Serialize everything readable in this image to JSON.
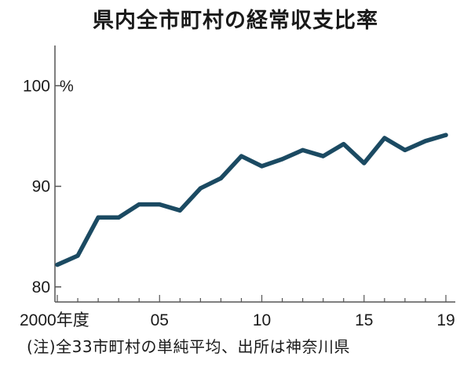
{
  "title": "県内全市町村の経常収支比率",
  "note": "(注)全33市町村の単純平均、出所は神奈川県",
  "chart_data": {
    "type": "line",
    "title": "県内全市町村の経常収支比率",
    "ylabel": "%",
    "ylim": [
      78.5,
      104
    ],
    "yticks": [
      80,
      90,
      100
    ],
    "ytick_labels": [
      "80",
      "90",
      "100"
    ],
    "x": [
      2000,
      2001,
      2002,
      2003,
      2004,
      2005,
      2006,
      2007,
      2008,
      2009,
      2010,
      2011,
      2012,
      2013,
      2014,
      2015,
      2016,
      2017,
      2018,
      2019
    ],
    "xlim": [
      2000,
      2019
    ],
    "xticks": [
      2000,
      2005,
      2010,
      2015,
      2019
    ],
    "xtick_labels": [
      "2000年度",
      "05",
      "10",
      "15",
      "19"
    ],
    "series": [
      {
        "values": [
          82.2,
          83.1,
          86.9,
          86.9,
          88.2,
          88.2,
          87.6,
          89.8,
          90.8,
          93.0,
          92.0,
          92.7,
          93.6,
          93.0,
          94.2,
          92.3,
          94.8,
          93.6,
          94.5,
          95.1
        ],
        "color": "#1b4a62"
      }
    ],
    "grid": false
  }
}
